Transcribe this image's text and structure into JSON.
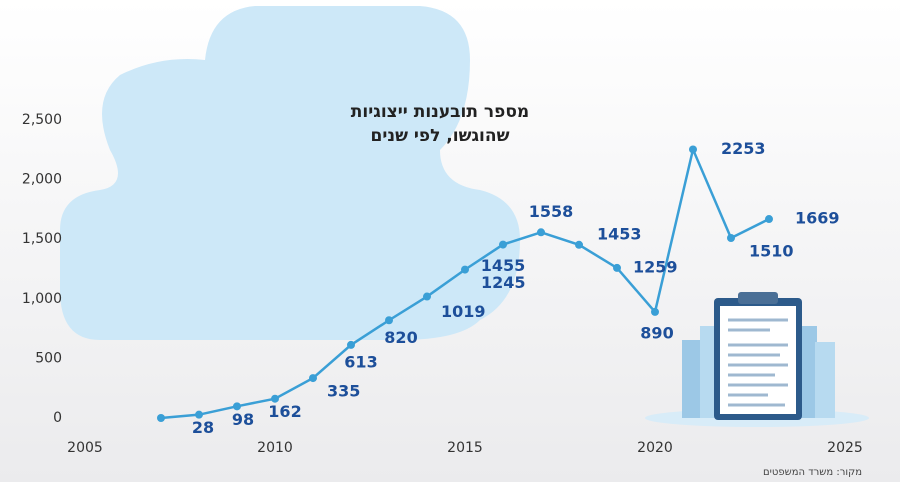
{
  "chart_data": {
    "type": "line",
    "title": "מספר תובענות ייצוגיות",
    "subtitle": "שהוגשו, לפי שנים",
    "source": "מקור: משרד המשפטים",
    "x": [
      2007,
      2008,
      2009,
      2010,
      2011,
      2012,
      2013,
      2014,
      2015,
      2016,
      2017,
      2018,
      2019,
      2020,
      2021,
      2022,
      2023
    ],
    "series": [
      {
        "name": "תובענות",
        "color": "#3a9fd6",
        "values": [
          0,
          28,
          98,
          162,
          335,
          613,
          820,
          1019,
          1245,
          1455,
          1558,
          1453,
          1259,
          890,
          2253,
          1510,
          1669
        ],
        "value_labels": [
          null,
          "28",
          "98",
          "162",
          "335",
          "613",
          "820",
          "1019",
          "1245",
          "1455",
          "1558",
          "1453",
          "1259",
          "890",
          "2253",
          "1510",
          "1669"
        ]
      }
    ],
    "xlim": [
      2005,
      2025
    ],
    "xticks": [
      2005,
      2010,
      2015,
      2020,
      2025
    ],
    "ylim": [
      0,
      2500
    ],
    "yticks": [
      0,
      500,
      {
        "value": 1000,
        "label": "1,000"
      },
      {
        "value": 1500,
        "label": "1,500"
      },
      {
        "value": 2000,
        "label": "2,000"
      },
      {
        "value": 2500,
        "label": "2,500"
      }
    ],
    "grid": false
  }
}
